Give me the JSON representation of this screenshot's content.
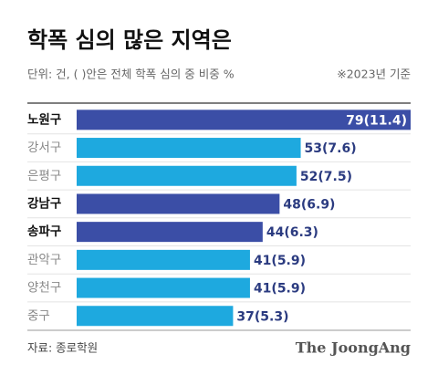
{
  "chart_data": {
    "type": "barh",
    "title": "학폭 심의 많은 지역은",
    "subtitle": "단위: 건, ( )안은 전체 학폭 심의 중 비중 %",
    "note": "※2023년 기준",
    "source": "자료: 종로학원",
    "brand": "The JoongAng",
    "categories": [
      "노원구",
      "강서구",
      "은평구",
      "강남구",
      "송파구",
      "관악구",
      "양천구",
      "중구"
    ],
    "values": [
      79,
      53,
      52,
      48,
      44,
      41,
      41,
      37
    ],
    "value_labels": [
      "79(11.4)",
      "53(7.6)",
      "52(7.5)",
      "48(6.9)",
      "44(6.3)",
      "41(5.9)",
      "41(5.9)",
      "37(5.3)"
    ],
    "colors": [
      "#3b4ea6",
      "#1ea9df",
      "#1ea9df",
      "#3b4ea6",
      "#3b4ea6",
      "#1ea9df",
      "#1ea9df",
      "#1ea9df"
    ],
    "highlight_color": "#3b4ea6"
  }
}
